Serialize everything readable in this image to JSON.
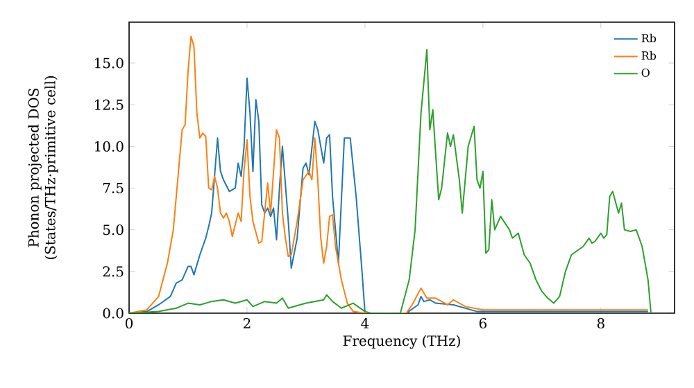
{
  "chart_data": {
    "type": "line",
    "xlabel": "Frequency (THz)",
    "ylabel": "Phonon projected DOS (States/THz·primitive cell)",
    "xlim": [
      0,
      9.25
    ],
    "ylim": [
      0,
      17.45
    ],
    "xticks": [
      0,
      2,
      4,
      6,
      8
    ],
    "yticks": [
      {
        "value": 0,
        "label": "0.0"
      },
      {
        "value": 2.5,
        "label": "2.5"
      },
      {
        "value": 5,
        "label": "5.0"
      },
      {
        "value": 7.5,
        "label": "7.5"
      },
      {
        "value": 10,
        "label": "10.0"
      },
      {
        "value": 12.5,
        "label": "12.5"
      },
      {
        "value": 15,
        "label": "15.0"
      }
    ],
    "legend": "top right",
    "grid": false,
    "marker": "none",
    "line_style": "solid",
    "series": [
      {
        "name": "Rb",
        "color": "#1f77b4",
        "x": [
          0,
          0.3,
          0.5,
          0.7,
          0.8,
          0.9,
          1.0,
          1.05,
          1.1,
          1.2,
          1.3,
          1.35,
          1.4,
          1.5,
          1.55,
          1.6,
          1.7,
          1.8,
          1.85,
          1.9,
          1.95,
          2.0,
          2.05,
          2.1,
          2.15,
          2.2,
          2.25,
          2.3,
          2.35,
          2.4,
          2.45,
          2.5,
          2.55,
          2.6,
          2.7,
          2.75,
          2.85,
          2.95,
          3.0,
          3.05,
          3.15,
          3.2,
          3.3,
          3.35,
          3.4,
          3.45,
          3.55,
          3.65,
          3.75,
          3.85,
          3.95,
          4.0,
          4.7,
          4.9,
          4.95,
          5.0,
          5.1,
          5.2,
          5.5,
          5.7,
          5.9,
          6.0,
          8.8
        ],
        "values": [
          0,
          0.1,
          0.5,
          1,
          1.8,
          2,
          2.8,
          2.8,
          2.3,
          3.5,
          4.5,
          5.2,
          6,
          10.5,
          8.5,
          8,
          7.3,
          7.5,
          9,
          8.2,
          10,
          14.1,
          12,
          8.5,
          12.8,
          11.5,
          6.5,
          6,
          6.3,
          5.8,
          6.3,
          4.4,
          7.5,
          10,
          5.5,
          2.7,
          4.5,
          8.7,
          9,
          8.3,
          11.5,
          11,
          9,
          10.5,
          10.7,
          7,
          3,
          10.5,
          10.5,
          7,
          2.5,
          0,
          0,
          0.5,
          1.0,
          0.7,
          0.8,
          0.6,
          0.5,
          0.3,
          0.1,
          0.1,
          0.1
        ]
      },
      {
        "name": "Rb",
        "color": "#ff7f0e",
        "x": [
          0,
          0.3,
          0.5,
          0.65,
          0.75,
          0.85,
          0.9,
          0.95,
          1.0,
          1.05,
          1.1,
          1.15,
          1.2,
          1.25,
          1.3,
          1.35,
          1.4,
          1.45,
          1.5,
          1.55,
          1.6,
          1.65,
          1.7,
          1.75,
          1.85,
          1.9,
          1.95,
          2.0,
          2.05,
          2.1,
          2.2,
          2.25,
          2.35,
          2.4,
          2.5,
          2.55,
          2.6,
          2.65,
          2.7,
          2.75,
          2.85,
          2.95,
          3.05,
          3.1,
          3.15,
          3.2,
          3.25,
          3.3,
          3.35,
          3.4,
          3.45,
          3.5,
          3.6,
          3.7,
          3.8,
          4.0,
          4.7,
          4.8,
          4.95,
          5.05,
          5.2,
          5.4,
          5.5,
          5.7,
          6.0,
          8.8
        ],
        "values": [
          0,
          0.2,
          1,
          3,
          5,
          9,
          11,
          11.3,
          14.5,
          16.6,
          16,
          12,
          10.5,
          10.8,
          10.6,
          7.5,
          7.4,
          8.2,
          7.5,
          6,
          5.7,
          6,
          5.5,
          4.6,
          6,
          5.5,
          8.6,
          10.4,
          7,
          5.5,
          4.2,
          4.3,
          7.8,
          6,
          11,
          10.5,
          6,
          4.5,
          3.4,
          3.5,
          5.5,
          8,
          8.5,
          8,
          10.5,
          8,
          4.5,
          3,
          4,
          5.8,
          5.9,
          4,
          2,
          0.6,
          0.1,
          0,
          0,
          0.5,
          1.5,
          0.9,
          0.9,
          0.5,
          0.8,
          0.4,
          0.2,
          0.2
        ]
      },
      {
        "name": "O",
        "color": "#2ca02c",
        "x": [
          0,
          0.5,
          0.8,
          1.0,
          1.2,
          1.4,
          1.6,
          1.8,
          2.0,
          2.1,
          2.3,
          2.5,
          2.6,
          2.7,
          3.0,
          3.3,
          3.35,
          3.45,
          3.6,
          3.8,
          4.0,
          4.1,
          4.6,
          4.75,
          4.85,
          4.95,
          5.05,
          5.1,
          5.15,
          5.25,
          5.3,
          5.4,
          5.45,
          5.5,
          5.6,
          5.65,
          5.75,
          5.85,
          5.9,
          5.95,
          6.0,
          6.05,
          6.1,
          6.15,
          6.2,
          6.3,
          6.45,
          6.5,
          6.6,
          6.7,
          6.8,
          6.9,
          7.0,
          7.1,
          7.2,
          7.3,
          7.4,
          7.5,
          7.7,
          7.8,
          7.85,
          7.9,
          8.0,
          8.05,
          8.1,
          8.15,
          8.2,
          8.3,
          8.35,
          8.4,
          8.5,
          8.6,
          8.7,
          8.8,
          8.85
        ],
        "values": [
          0,
          0.1,
          0.3,
          0.6,
          0.5,
          0.7,
          0.8,
          0.6,
          0.8,
          0.4,
          0.7,
          0.6,
          0.9,
          0.3,
          0.6,
          0.8,
          1.1,
          0.7,
          0.3,
          0.6,
          0.1,
          0,
          0,
          2,
          5,
          12,
          15.8,
          11,
          12.2,
          6.8,
          7.5,
          10.8,
          10,
          10.7,
          8,
          6,
          10,
          11.2,
          8,
          7.5,
          8.5,
          3.6,
          3.8,
          6.8,
          5,
          5.8,
          5,
          4.5,
          4.8,
          3.5,
          3,
          2,
          1.3,
          0.9,
          0.6,
          1,
          2.5,
          3.5,
          4,
          4.5,
          4.2,
          4.3,
          4.8,
          4.5,
          4.7,
          7,
          7.3,
          6,
          6.6,
          5,
          4.9,
          5,
          4,
          2,
          0
        ]
      }
    ]
  }
}
